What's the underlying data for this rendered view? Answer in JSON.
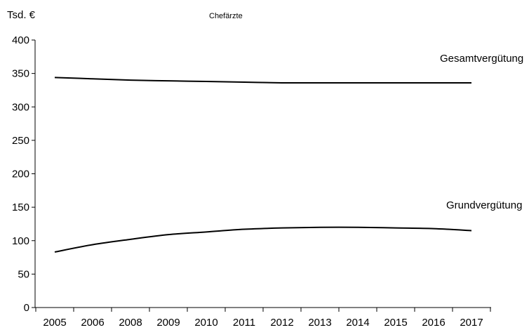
{
  "chart_data": {
    "type": "line",
    "title": "Chefärzte",
    "ylabel": "Tsd. €",
    "xlabel": "",
    "ylim": [
      0,
      400
    ],
    "yticks": [
      0,
      50,
      100,
      150,
      200,
      250,
      300,
      350,
      400
    ],
    "categories": [
      "2005",
      "2006",
      "2008",
      "2009",
      "2010",
      "2011",
      "2012",
      "2013",
      "2014",
      "2015",
      "2016",
      "2017"
    ],
    "grid": false,
    "legend": "none",
    "series": [
      {
        "name": "Gesamtvergütung",
        "color": "#000000",
        "values": [
          344,
          342,
          340,
          339,
          338,
          337,
          336,
          336,
          336,
          336,
          336,
          336
        ]
      },
      {
        "name": "Grundvergütung",
        "color": "#000000",
        "values": [
          83,
          94,
          102,
          109,
          113,
          117,
          119,
          120,
          120,
          119,
          118,
          115
        ]
      }
    ]
  }
}
